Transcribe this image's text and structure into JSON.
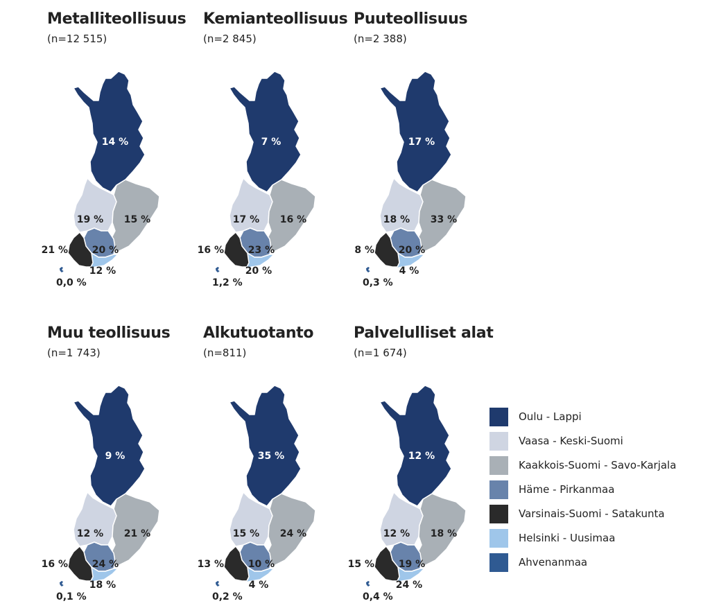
{
  "regions": [
    {
      "key": "oulu_lappi",
      "name": "Oulu - Lappi",
      "color": "#1f3a6d"
    },
    {
      "key": "vaasa_keski_suomi",
      "name": "Vaasa - Keski-Suomi",
      "color": "#cfd5e2"
    },
    {
      "key": "kaakkois_suomi_savo_karjala",
      "name": "Kaakkois-Suomi - Savo-Karjala",
      "color": "#a9b0b6"
    },
    {
      "key": "hame_pirkanmaa",
      "name": "Häme - Pirkanmaa",
      "color": "#6883ab"
    },
    {
      "key": "varsinais_suomi_satakunta",
      "name": "Varsinais-Suomi - Satakunta",
      "color": "#2a2a2a"
    },
    {
      "key": "helsinki_uusimaa",
      "name": "Helsinki - Uusimaa",
      "color": "#9fc6ea"
    },
    {
      "key": "ahvenanmaa",
      "name": "Ahvenanmaa",
      "color": "#2f5a92"
    }
  ],
  "panels": [
    {
      "title": "Metalliteollisuus",
      "n": "(n=12 515)",
      "values": {
        "oulu_lappi": "14 %",
        "vaasa_keski_suomi": "19 %",
        "kaakkois_suomi_savo_karjala": "15 %",
        "hame_pirkanmaa": "20 %",
        "varsinais_suomi_satakunta": "21 %",
        "helsinki_uusimaa": "12 %",
        "ahvenanmaa": "0,0 %"
      }
    },
    {
      "title": "Kemianteollisuus",
      "n": "(n=2 845)",
      "values": {
        "oulu_lappi": "7 %",
        "vaasa_keski_suomi": "17 %",
        "kaakkois_suomi_savo_karjala": "16 %",
        "hame_pirkanmaa": "23 %",
        "varsinais_suomi_satakunta": "16 %",
        "helsinki_uusimaa": "20 %",
        "ahvenanmaa": "1,2 %"
      }
    },
    {
      "title": "Puuteollisuus",
      "n": "(n=2 388)",
      "values": {
        "oulu_lappi": "17 %",
        "vaasa_keski_suomi": "18 %",
        "kaakkois_suomi_savo_karjala": "33 %",
        "hame_pirkanmaa": "20 %",
        "varsinais_suomi_satakunta": "8 %",
        "helsinki_uusimaa": "4 %",
        "ahvenanmaa": "0,3 %"
      }
    },
    {
      "title": "Muu teollisuus",
      "n": "(n=1 743)",
      "values": {
        "oulu_lappi": "9 %",
        "vaasa_keski_suomi": "12 %",
        "kaakkois_suomi_savo_karjala": "21 %",
        "hame_pirkanmaa": "24 %",
        "varsinais_suomi_satakunta": "16 %",
        "helsinki_uusimaa": "18 %",
        "ahvenanmaa": "0,1 %"
      }
    },
    {
      "title": "Alkutuotanto",
      "n": "(n=811)",
      "values": {
        "oulu_lappi": "35 %",
        "vaasa_keski_suomi": "15 %",
        "kaakkois_suomi_savo_karjala": "24 %",
        "hame_pirkanmaa": "10 %",
        "varsinais_suomi_satakunta": "13 %",
        "helsinki_uusimaa": "4 %",
        "ahvenanmaa": "0,2 %"
      }
    },
    {
      "title": "Palvelulliset alat",
      "n": "(n=1 674)",
      "values": {
        "oulu_lappi": "12 %",
        "vaasa_keski_suomi": "12 %",
        "kaakkois_suomi_savo_karjala": "18 %",
        "hame_pirkanmaa": "19 %",
        "varsinais_suomi_satakunta": "15 %",
        "helsinki_uusimaa": "24 %",
        "ahvenanmaa": "0,4 %"
      }
    }
  ]
}
